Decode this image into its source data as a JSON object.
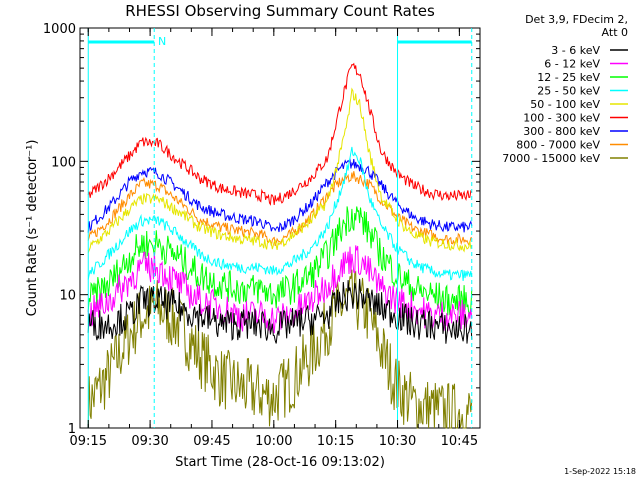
{
  "chart_data": {
    "type": "line",
    "title": "RHESSI Observing Summary Count Rates",
    "xlabel": "Start Time (28-Oct-16 09:13:02)",
    "ylabel": "Count Rate (s⁻¹ detector⁻¹)",
    "y_scale": "log",
    "ylim": [
      1,
      1000
    ],
    "xlim": [
      "09:13",
      "10:50"
    ],
    "x_ticks": [
      "09:15",
      "09:30",
      "09:45",
      "10:00",
      "10:15",
      "10:30",
      "10:45"
    ],
    "y_ticks": [
      "1",
      "10",
      "100",
      "1000"
    ],
    "legend_header": [
      "Det 3,9, FDecim 2,",
      "Att 0"
    ],
    "legend_position": "right",
    "flag_label": "N",
    "markers": {
      "solid_lines": [
        "09:15",
        "10:30"
      ],
      "dashed_lines": [
        "09:31",
        "10:48"
      ],
      "flag_intervals": [
        [
          "09:15",
          "09:31"
        ],
        [
          "10:30",
          "10:48"
        ]
      ]
    },
    "x": [
      "09:15",
      "09:20",
      "09:25",
      "09:28",
      "09:32",
      "09:37",
      "09:42",
      "09:47",
      "09:52",
      "09:57",
      "10:00",
      "10:04",
      "10:09",
      "10:13",
      "10:16",
      "10:18",
      "10:19",
      "10:21",
      "10:23",
      "10:26",
      "10:30",
      "10:34",
      "10:38",
      "10:42",
      "10:48"
    ],
    "series": [
      {
        "name": "3 - 6 keV",
        "color": "#000000",
        "values": [
          6,
          6,
          7,
          9,
          9,
          8,
          7,
          6,
          6,
          6,
          5.5,
          6,
          6.5,
          7,
          9,
          10,
          10,
          10,
          9,
          8,
          7,
          6,
          6,
          5.5,
          5.5
        ]
      },
      {
        "name": "6 - 12 keV",
        "color": "#ff00ff",
        "values": [
          7,
          9,
          13,
          16,
          16,
          12,
          9,
          8,
          7,
          7,
          6.5,
          7,
          9,
          12,
          16,
          18,
          19,
          18,
          15,
          11,
          9,
          8,
          7,
          7,
          7
        ]
      },
      {
        "name": "12 - 25 keV",
        "color": "#00ff00",
        "values": [
          9,
          12,
          19,
          24,
          24,
          19,
          14,
          12,
          11,
          11,
          10,
          11,
          14,
          20,
          30,
          38,
          40,
          38,
          30,
          20,
          14,
          11,
          10,
          9,
          9
        ]
      },
      {
        "name": "25 - 50 keV",
        "color": "#00ffff",
        "values": [
          14,
          20,
          30,
          36,
          36,
          28,
          20,
          17,
          16,
          16,
          15,
          17,
          22,
          32,
          58,
          90,
          120,
          100,
          55,
          33,
          22,
          17,
          15,
          14,
          14
        ]
      },
      {
        "name": "50 - 100 keV",
        "color": "#e6e600",
        "values": [
          22,
          30,
          44,
          52,
          52,
          42,
          32,
          28,
          26,
          25,
          23,
          27,
          36,
          50,
          110,
          210,
          330,
          260,
          120,
          55,
          36,
          28,
          25,
          24,
          23
        ]
      },
      {
        "name": "100 - 300 keV",
        "color": "#ff0000",
        "values": [
          55,
          75,
          110,
          140,
          135,
          100,
          75,
          63,
          58,
          55,
          50,
          58,
          75,
          105,
          250,
          420,
          520,
          450,
          260,
          120,
          80,
          65,
          58,
          55,
          55
        ]
      },
      {
        "name": "300 - 800 keV",
        "color": "#0000ff",
        "values": [
          32,
          45,
          70,
          85,
          82,
          62,
          46,
          40,
          37,
          35,
          30,
          35,
          48,
          70,
          88,
          95,
          96,
          92,
          85,
          66,
          48,
          38,
          34,
          32,
          32
        ]
      },
      {
        "name": "800 - 7000 keV",
        "color": "#ff8c00",
        "values": [
          26,
          36,
          55,
          68,
          66,
          50,
          37,
          32,
          30,
          28,
          25,
          28,
          38,
          56,
          70,
          76,
          77,
          74,
          68,
          52,
          38,
          31,
          28,
          26,
          26
        ]
      },
      {
        "name": "7000 - 15000 keV",
        "color": "#808000",
        "values": [
          1.5,
          2.5,
          5,
          7,
          8,
          6,
          3.5,
          2.4,
          2,
          1.8,
          1.7,
          2.2,
          3.5,
          6,
          8,
          9,
          9,
          8.5,
          7,
          4,
          2,
          1.5,
          1.4,
          1.3,
          1.3
        ]
      }
    ]
  },
  "footer": {
    "timestamp": "1-Sep-2022 15:18"
  }
}
